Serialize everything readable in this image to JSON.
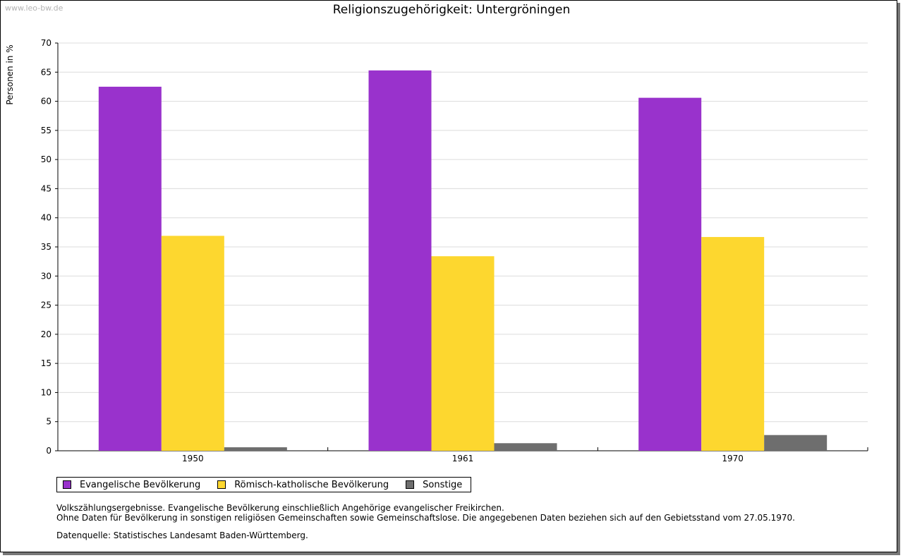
{
  "watermark": "www.leo-bw.de",
  "chart_data": {
    "type": "bar",
    "title": "Religionszugehörigkeit: Untergröningen",
    "xlabel": "",
    "ylabel": "Personen in %",
    "ylim": [
      0,
      70
    ],
    "yticks": [
      0,
      5,
      10,
      15,
      20,
      25,
      30,
      35,
      40,
      45,
      50,
      55,
      60,
      65,
      70
    ],
    "grid": true,
    "legend_position": "bottom-left",
    "categories": [
      "1950",
      "1961",
      "1970"
    ],
    "series": [
      {
        "name": "Evangelische Bevölkerung",
        "color": "#9932cc",
        "values": [
          62.5,
          65.3,
          60.6
        ]
      },
      {
        "name": "Römisch-katholische Bevölkerung",
        "color": "#fdd72f",
        "values": [
          36.9,
          33.4,
          36.7
        ]
      },
      {
        "name": "Sonstige",
        "color": "#6e6e6e",
        "values": [
          0.6,
          1.3,
          2.7
        ]
      }
    ]
  },
  "notes": {
    "line1": "Volkszählungsergebnisse. Evangelische Bevölkerung einschließlich Angehörige evangelischer Freikirchen.",
    "line2": "Ohne Daten für Bevölkerung in sonstigen religiösen Gemeinschaften sowie Gemeinschaftslose. Die angegebenen Daten beziehen sich auf den Gebietsstand vom 27.05.1970."
  },
  "source": "Datenquelle: Statistisches Landesamt Baden-Württemberg."
}
